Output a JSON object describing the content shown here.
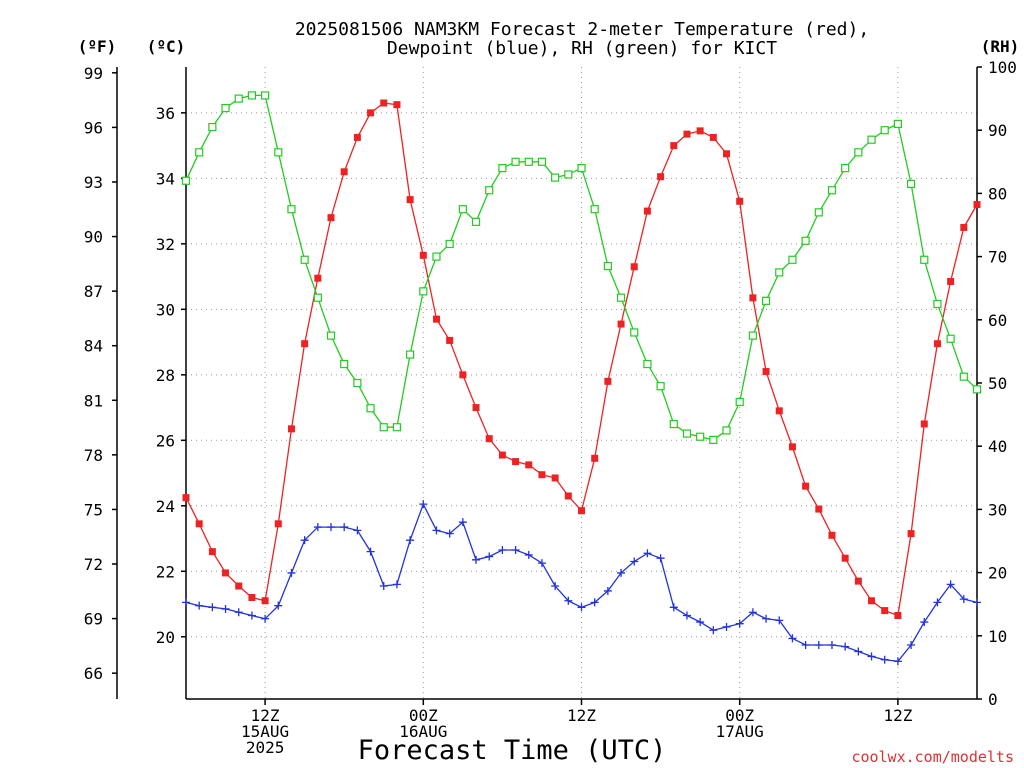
{
  "chart_data": {
    "type": "line",
    "title_lines": [
      "2025081506 NAM3KM Forecast 2-meter Temperature (red),",
      "Dewpoint (blue), RH (green) for KICT"
    ],
    "unit_labels": {
      "fahrenheit": "(ºF)",
      "celsius": "(ºC)",
      "rh": "(RH)"
    },
    "xlabel": "Forecast Time (UTC)",
    "credit": "coolwx.com/modelts",
    "x_unit": "forecast hour",
    "x_range": [
      6,
      66
    ],
    "x_ticks": [
      {
        "hour": 12,
        "lines": [
          "12Z",
          "15AUG",
          "2025"
        ]
      },
      {
        "hour": 24,
        "lines": [
          "00Z",
          "16AUG"
        ]
      },
      {
        "hour": 36,
        "lines": [
          "12Z"
        ]
      },
      {
        "hour": 48,
        "lines": [
          "00Z",
          "17AUG"
        ]
      },
      {
        "hour": 60,
        "lines": [
          "12Z"
        ]
      }
    ],
    "celsius_axis": {
      "range": [
        18.1,
        37.4
      ],
      "ticks": [
        20,
        22,
        24,
        26,
        28,
        30,
        32,
        34,
        36
      ]
    },
    "fahrenheit_axis": {
      "range": [
        64.58,
        99.32
      ],
      "ticks": [
        66,
        69,
        72,
        75,
        78,
        81,
        84,
        87,
        90,
        93,
        96,
        99
      ]
    },
    "rh_axis": {
      "range": [
        0,
        100
      ],
      "ticks": [
        0,
        10,
        20,
        30,
        40,
        50,
        60,
        70,
        80,
        90,
        100
      ]
    },
    "x": [
      6,
      7,
      8,
      9,
      10,
      11,
      12,
      13,
      14,
      15,
      16,
      17,
      18,
      19,
      20,
      21,
      22,
      23,
      24,
      25,
      26,
      27,
      28,
      29,
      30,
      31,
      32,
      33,
      34,
      35,
      36,
      37,
      38,
      39,
      40,
      41,
      42,
      43,
      44,
      45,
      46,
      47,
      48,
      49,
      50,
      51,
      52,
      53,
      54,
      55,
      56,
      57,
      58,
      59,
      60,
      61,
      62,
      63,
      64,
      65,
      66
    ],
    "series": [
      {
        "name": "Temperature",
        "axis": "celsius",
        "color": "#ee2222",
        "marker": "filled-square",
        "values": [
          24.25,
          23.45,
          22.6,
          21.95,
          21.55,
          21.2,
          21.1,
          23.45,
          26.35,
          28.95,
          30.95,
          32.8,
          34.2,
          35.25,
          36.0,
          36.3,
          36.25,
          33.35,
          31.65,
          29.7,
          29.05,
          28.0,
          27.0,
          26.05,
          25.55,
          25.35,
          25.25,
          24.95,
          24.85,
          24.3,
          23.85,
          25.45,
          27.8,
          29.55,
          31.3,
          33.0,
          34.05,
          35.0,
          35.35,
          35.45,
          35.25,
          34.75,
          33.3,
          30.35,
          28.1,
          26.9,
          25.8,
          24.6,
          23.9,
          23.1,
          22.4,
          21.7,
          21.1,
          20.8,
          20.65,
          23.15,
          26.5,
          28.95,
          30.85,
          32.5,
          33.2
        ]
      },
      {
        "name": "Dewpoint",
        "axis": "celsius",
        "color": "#2233dd",
        "marker": "plus",
        "values": [
          21.05,
          20.95,
          20.9,
          20.85,
          20.75,
          20.65,
          20.55,
          20.95,
          21.95,
          22.95,
          23.35,
          23.35,
          23.35,
          23.25,
          22.6,
          21.55,
          21.6,
          22.95,
          24.05,
          23.25,
          23.15,
          23.5,
          22.35,
          22.45,
          22.65,
          22.65,
          22.5,
          22.25,
          21.55,
          21.1,
          20.9,
          21.05,
          21.4,
          21.95,
          22.3,
          22.55,
          22.4,
          20.9,
          20.65,
          20.45,
          20.2,
          20.3,
          20.4,
          20.75,
          20.55,
          20.5,
          19.95,
          19.75,
          19.75,
          19.75,
          19.7,
          19.55,
          19.4,
          19.3,
          19.25,
          19.75,
          20.45,
          21.05,
          21.6,
          21.15,
          21.05
        ]
      },
      {
        "name": "RH",
        "axis": "rh",
        "color": "#22cc22",
        "marker": "open-square",
        "values": [
          82,
          86.5,
          90.5,
          93.5,
          95,
          95.5,
          95.5,
          86.5,
          77.5,
          69.5,
          63.5,
          57.5,
          53,
          50,
          46,
          43,
          43,
          54.5,
          64.5,
          70,
          72,
          77.5,
          75.5,
          80.5,
          84,
          85,
          85,
          85,
          82.5,
          83,
          84,
          77.5,
          68.5,
          63.5,
          58,
          53,
          49.5,
          43.5,
          42,
          41.5,
          41,
          42.5,
          47,
          57.5,
          63,
          67.5,
          69.5,
          72.5,
          77,
          80.5,
          84,
          86.5,
          88.5,
          90,
          91,
          81.5,
          69.5,
          62.5,
          57,
          51,
          49
        ]
      }
    ]
  }
}
